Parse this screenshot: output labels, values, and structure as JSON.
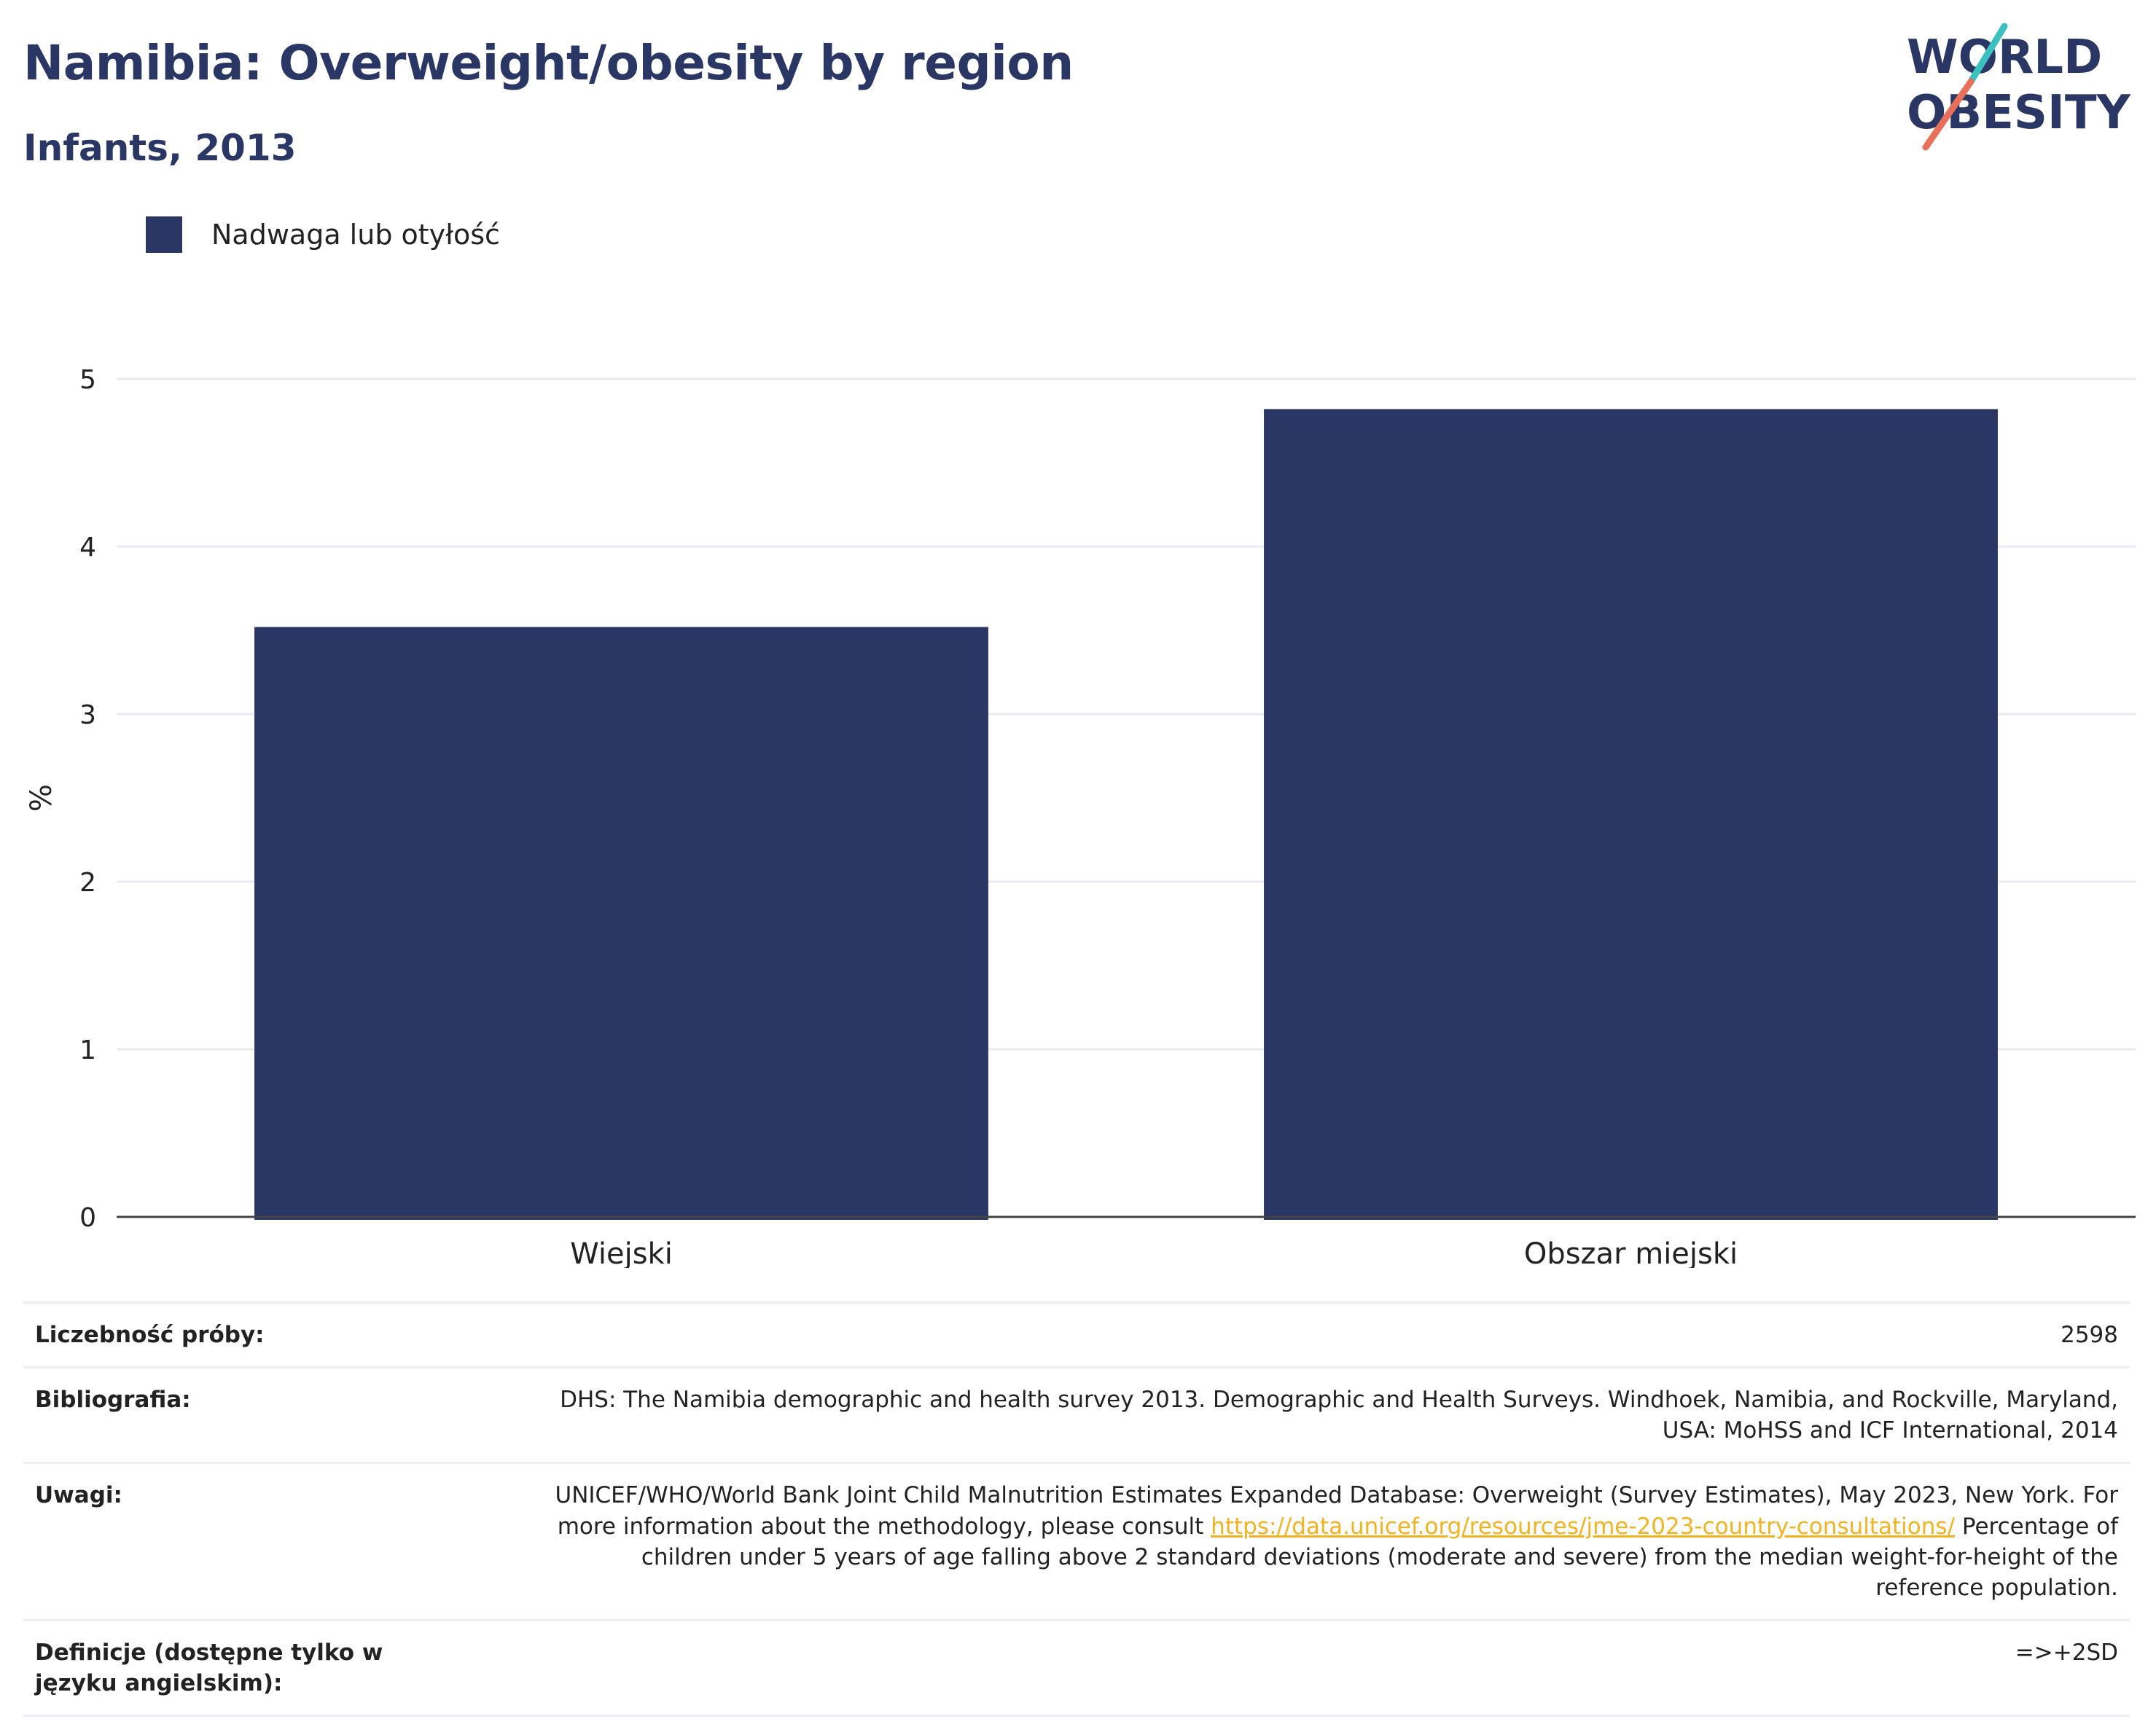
{
  "header": {
    "title": "Namibia: Overweight/obesity by region",
    "subtitle": "Infants, 2013",
    "logo_line1": "WORLD",
    "logo_line2": "OBESITY"
  },
  "colors": {
    "bar": "#2a3764",
    "title": "#2a3764",
    "link": "#f0b323",
    "logo_teal": "#3bbfbf",
    "logo_coral": "#e8705a"
  },
  "chart_data": {
    "type": "bar",
    "categories": [
      "Wiejski",
      "Obszar miejski"
    ],
    "series": [
      {
        "name": "Nadwaga lub otyłość",
        "values": [
          3.52,
          4.82
        ]
      }
    ],
    "title": "",
    "xlabel": "",
    "ylabel": "%",
    "ylim": [
      0,
      5
    ],
    "yticks": [
      0,
      1,
      2,
      3,
      4,
      5
    ],
    "grid": true,
    "legend_position": "top-left"
  },
  "meta": {
    "sample_size": {
      "label": "Liczebność próby:",
      "value": "2598"
    },
    "bibliography": {
      "label": "Bibliografia:",
      "value": "DHS: The Namibia demographic and health survey 2013. Demographic and Health Surveys. Windhoek, Namibia, and Rockville, Maryland, USA: MoHSS and ICF International, 2014"
    },
    "notes": {
      "label": "Uwagi:",
      "text_before": "UNICEF/WHO/World Bank Joint Child Malnutrition Estimates Expanded Database: Overweight (Survey Estimates), May 2023, New York. For more information about the methodology, please consult ",
      "link": "https://data.unicef.org/resources/jme-2023-country-consultations/",
      "text_after": " Percentage of children under 5 years of age falling above 2 standard deviations (moderate and severe) from the median weight-for-height of the reference population."
    },
    "definitions": {
      "label": "Definicje (dostępne tylko w języku angielskim):",
      "value": "=>+2SD"
    }
  }
}
